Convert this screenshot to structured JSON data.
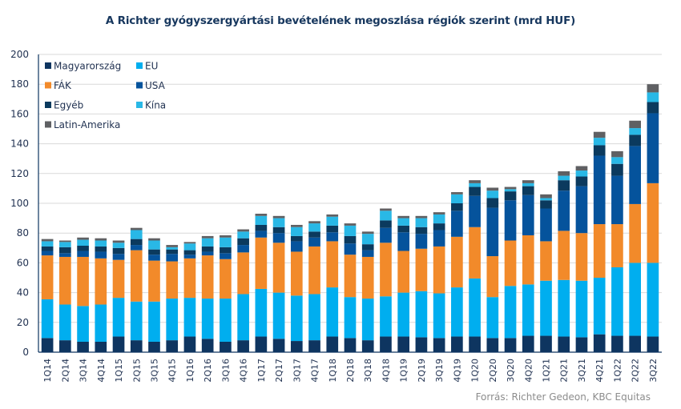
{
  "chart_data": {
    "type": "bar",
    "stacked": true,
    "title": "A Richter gyógyszergyártási bevételének megoszlása régiók szerint (mrd HUF)",
    "xlabel": "",
    "ylabel": "",
    "ylim": [
      0,
      200
    ],
    "yticks": [
      0,
      20,
      40,
      60,
      80,
      100,
      120,
      140,
      160,
      180,
      200
    ],
    "grid": true,
    "legend_position": "top-left",
    "categories": [
      "1Q14",
      "2Q14",
      "3Q14",
      "4Q14",
      "1Q15",
      "2Q15",
      "3Q15",
      "4Q15",
      "1Q16",
      "2Q16",
      "3Q16",
      "4Q16",
      "1Q17",
      "2Q17",
      "3Q17",
      "4Q17",
      "1Q18",
      "2Q18",
      "3Q18",
      "4Q18",
      "1Q19",
      "2Q19",
      "3Q19",
      "4Q19",
      "1Q20",
      "2Q20",
      "3Q20",
      "4Q20",
      "1Q21",
      "2Q21",
      "3Q21",
      "4Q21",
      "1Q22",
      "2Q22",
      "3Q22"
    ],
    "series": [
      {
        "name": "Magyarország",
        "color": "#0e3560",
        "values": [
          9.5,
          8,
          7,
          7,
          10.5,
          8,
          7,
          8,
          10.5,
          9,
          7,
          8,
          10.5,
          9,
          7.5,
          8,
          10.5,
          9.5,
          8,
          10.5,
          10.5,
          10,
          9.5,
          10.5,
          10.5,
          9.5,
          9.5,
          11,
          11,
          10.5,
          10,
          12,
          11,
          11,
          10.5
        ]
      },
      {
        "name": "EU",
        "color": "#00aeef",
        "values": [
          26,
          24,
          24,
          25,
          26,
          26,
          27,
          28,
          26,
          27,
          29,
          31,
          32,
          31,
          30.5,
          31,
          33,
          27.5,
          28,
          27,
          29.5,
          31,
          30,
          33,
          39,
          27.5,
          35,
          34.5,
          37,
          38,
          38,
          38,
          46,
          49,
          49.5
        ]
      },
      {
        "name": "FÁK",
        "color": "#f28a2a",
        "values": [
          29.5,
          32,
          33,
          31,
          25.5,
          34.5,
          27.5,
          25,
          26.5,
          29,
          26.5,
          28,
          34.5,
          33.5,
          29.5,
          32,
          31,
          28.5,
          28,
          36,
          28,
          28.5,
          31.5,
          34,
          34.5,
          27.5,
          30.5,
          33,
          26.5,
          33,
          32,
          36,
          29,
          39.5,
          53.5
        ]
      },
      {
        "name": "USA",
        "color": "#05539c",
        "values": [
          3,
          2.5,
          4,
          4.5,
          4,
          3.5,
          4,
          5,
          2.5,
          2.5,
          4,
          5,
          4.5,
          6.5,
          7,
          6,
          6,
          7.5,
          4.5,
          10,
          12.5,
          10,
          11,
          17.5,
          21,
          32.5,
          27,
          27,
          22,
          27,
          31.5,
          46,
          32.5,
          39,
          47
        ]
      },
      {
        "name": "Egyéb",
        "color": "#0b3a5e",
        "values": [
          3,
          4,
          3.5,
          3.5,
          4,
          4,
          3.5,
          3,
          3,
          3.5,
          4,
          4.5,
          4,
          4,
          3.5,
          4,
          4.5,
          5,
          4,
          5,
          4.5,
          4.5,
          4.5,
          5,
          6,
          6.5,
          6,
          6,
          5.5,
          7,
          6.5,
          7,
          8,
          7.5,
          7.5
        ]
      },
      {
        "name": "Kína",
        "color": "#29b8e6",
        "values": [
          3.5,
          3.5,
          4,
          4,
          3.5,
          6,
          6,
          1.5,
          4.5,
          5.5,
          6.5,
          4.5,
          6,
          6,
          6,
          5.5,
          6,
          7,
          7,
          6.5,
          5,
          6,
          6,
          6,
          2.5,
          5,
          1.5,
          2,
          1.5,
          3,
          4,
          5,
          4.5,
          4.5,
          6.5
        ]
      },
      {
        "name": "Latin-Amerika",
        "color": "#5f6063",
        "values": [
          1.5,
          1,
          1.5,
          1.5,
          1.5,
          1.5,
          1.5,
          1.5,
          1,
          1.5,
          1.5,
          1.5,
          1.5,
          1.5,
          1.5,
          1.5,
          1.5,
          1.5,
          1.5,
          1.5,
          1.5,
          1.5,
          1.5,
          1.5,
          2,
          2,
          1.5,
          2,
          2.5,
          3,
          3,
          4,
          4,
          5,
          5.5
        ]
      }
    ]
  },
  "source_text": "Forrás: Richter Gedeon, KBC Equitas"
}
